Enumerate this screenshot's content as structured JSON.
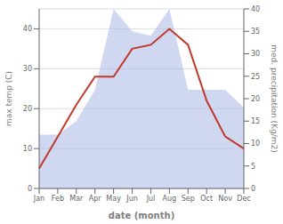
{
  "chart_data": {
    "type": "line",
    "xlabel": "date (month)",
    "ylabel": "max temp (C)",
    "y2label": "med. precipitation (Kg/m2)",
    "categories": [
      "Jan",
      "Feb",
      "Mar",
      "Apr",
      "May",
      "Jun",
      "Jul",
      "Aug",
      "Sep",
      "Oct",
      "Nov",
      "Dec"
    ],
    "series": [
      {
        "type": "area",
        "axis": "y2",
        "color": "#b0bce8",
        "values": [
          12,
          12,
          15,
          22,
          40,
          35,
          34,
          40,
          22,
          22,
          22,
          18
        ]
      },
      {
        "type": "line",
        "color": "#c0392b",
        "values": [
          5,
          13,
          21,
          28,
          28,
          35,
          36,
          40,
          36,
          22,
          13,
          10
        ]
      }
    ],
    "ylim": [
      0,
      45
    ],
    "yticks": [
      0,
      10,
      20,
      30,
      40
    ],
    "y2lim": [
      0,
      40
    ],
    "y2ticks": [
      0,
      5,
      10,
      15,
      20,
      25,
      30,
      35,
      40
    ],
    "grid": true
  }
}
